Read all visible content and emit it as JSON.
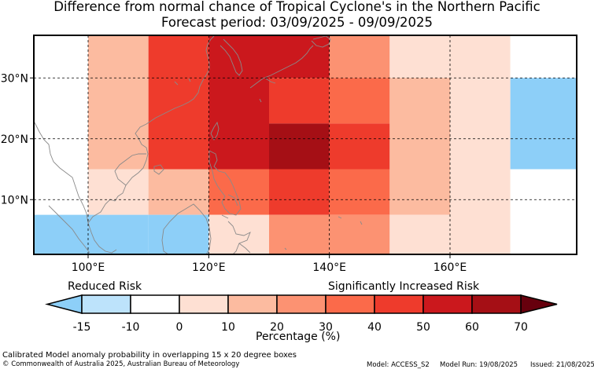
{
  "title": "Difference from normal chance of Tropical Cyclone's in the Northern Pacific",
  "subtitle": "Forecast period: 03/09/2025 - 09/09/2025",
  "map": {
    "lon_range": [
      91,
      181
    ],
    "lat_range": [
      1,
      37
    ],
    "lon_ticks": [
      {
        "value": 100,
        "label": "100°E"
      },
      {
        "value": 120,
        "label": "120°E"
      },
      {
        "value": 140,
        "label": "140°E"
      },
      {
        "value": 160,
        "label": "160°E"
      }
    ],
    "lat_ticks": [
      {
        "value": 10,
        "label": "10°N"
      },
      {
        "value": 20,
        "label": "20°N"
      },
      {
        "value": 30,
        "label": "30°N"
      }
    ],
    "cells": [
      {
        "lon0": 91,
        "lon1": 100,
        "lat0": 7.5,
        "lat1": 37,
        "value": -10
      },
      {
        "lon0": 91,
        "lon1": 100,
        "lat0": 1,
        "lat1": 7.5,
        "value": -15
      },
      {
        "lon0": 100,
        "lon1": 110,
        "lat0": 7.5,
        "lat1": 15,
        "value": 0
      },
      {
        "lon0": 100,
        "lon1": 110,
        "lat0": 15,
        "lat1": 37,
        "value": 10
      },
      {
        "lon0": 100,
        "lon1": 110,
        "lat0": 1,
        "lat1": 7.5,
        "value": -15
      },
      {
        "lon0": 110,
        "lon1": 120,
        "lat0": 15,
        "lat1": 37,
        "value": 40
      },
      {
        "lon0": 110,
        "lon1": 120,
        "lat0": 7.5,
        "lat1": 15,
        "value": 10
      },
      {
        "lon0": 110,
        "lon1": 120,
        "lat0": 1,
        "lat1": 7.5,
        "value": -15
      },
      {
        "lon0": 120,
        "lon1": 130,
        "lat0": 15,
        "lat1": 37,
        "value": 50
      },
      {
        "lon0": 120,
        "lon1": 130,
        "lat0": 7.5,
        "lat1": 15,
        "value": 30
      },
      {
        "lon0": 120,
        "lon1": 130,
        "lat0": 1,
        "lat1": 7.5,
        "value": 0
      },
      {
        "lon0": 130,
        "lon1": 140,
        "lat0": 30,
        "lat1": 37,
        "value": 50
      },
      {
        "lon0": 130,
        "lon1": 140,
        "lat0": 22.5,
        "lat1": 30,
        "value": 45
      },
      {
        "lon0": 130,
        "lon1": 140,
        "lat0": 15,
        "lat1": 22.5,
        "value": 60
      },
      {
        "lon0": 130,
        "lon1": 140,
        "lat0": 7.5,
        "lat1": 15,
        "value": 45
      },
      {
        "lon0": 130,
        "lon1": 140,
        "lat0": 1,
        "lat1": 7.5,
        "value": 20
      },
      {
        "lon0": 140,
        "lon1": 150,
        "lat0": 30,
        "lat1": 37,
        "value": 20
      },
      {
        "lon0": 140,
        "lon1": 150,
        "lat0": 22.5,
        "lat1": 30,
        "value": 30
      },
      {
        "lon0": 140,
        "lon1": 150,
        "lat0": 15,
        "lat1": 22.5,
        "value": 40
      },
      {
        "lon0": 140,
        "lon1": 150,
        "lat0": 7.5,
        "lat1": 15,
        "value": 30
      },
      {
        "lon0": 140,
        "lon1": 150,
        "lat0": 1,
        "lat1": 7.5,
        "value": 20
      },
      {
        "lon0": 150,
        "lon1": 160,
        "lat0": 30,
        "lat1": 37,
        "value": 0
      },
      {
        "lon0": 150,
        "lon1": 160,
        "lat0": 7.5,
        "lat1": 30,
        "value": 10
      },
      {
        "lon0": 150,
        "lon1": 160,
        "lat0": 1,
        "lat1": 7.5,
        "value": 0
      },
      {
        "lon0": 160,
        "lon1": 170,
        "lat0": 1,
        "lat1": 37,
        "value": 0
      },
      {
        "lon0": 170,
        "lon1": 181,
        "lat0": 30,
        "lat1": 37,
        "value": -10
      },
      {
        "lon0": 170,
        "lon1": 181,
        "lat0": 15,
        "lat1": 30,
        "value": -15
      },
      {
        "lon0": 170,
        "lon1": 181,
        "lat0": 1,
        "lat1": 15,
        "value": -10
      }
    ]
  },
  "colorbar": {
    "left_label": "Reduced Risk",
    "right_label": "Significantly Increased Risk",
    "title": "Percentage (%)",
    "bins": [
      {
        "from": -15,
        "to": -10,
        "color": "#bde3fb"
      },
      {
        "from": -10,
        "to": 0,
        "color": "#ffffff"
      },
      {
        "from": 0,
        "to": 10,
        "color": "#fee0d3"
      },
      {
        "from": 10,
        "to": 20,
        "color": "#fcbba0"
      },
      {
        "from": 20,
        "to": 30,
        "color": "#fc9272"
      },
      {
        "from": 30,
        "to": 40,
        "color": "#fb6a4a"
      },
      {
        "from": 40,
        "to": 50,
        "color": "#ee3b2c"
      },
      {
        "from": 50,
        "to": 60,
        "color": "#cb181d"
      },
      {
        "from": 60,
        "to": 70,
        "color": "#a50f15"
      }
    ],
    "under_color": "#8dcff8",
    "over_color": "#67000d",
    "tick_labels": [
      "-15",
      "-10",
      "0",
      "10",
      "20",
      "30",
      "40",
      "50",
      "60",
      "70"
    ]
  },
  "footer": {
    "description": "Calibrated Model anomaly probability in overlapping 15 x 20 degree boxes",
    "copyright": "© Commonwealth of Australia 2025, Australian Bureau of Meteorology",
    "model": "Model: ACCESS_S2",
    "model_run": "Model Run: 19/08/2025",
    "issued": "Issued: 21/08/2025"
  }
}
